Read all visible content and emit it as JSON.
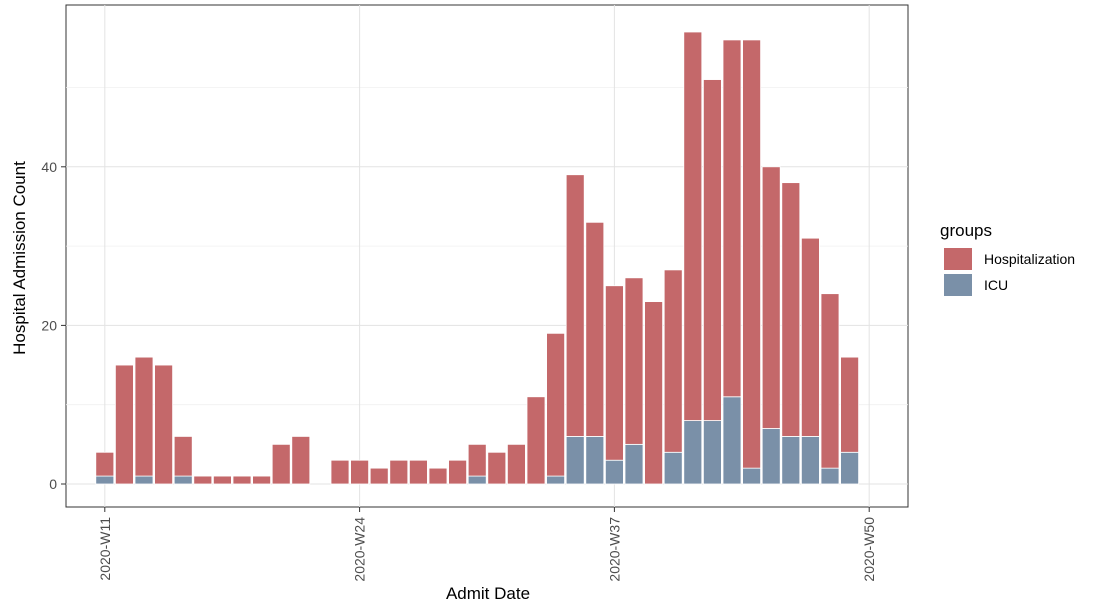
{
  "chart_data": {
    "type": "bar",
    "stacked": true,
    "xlabel": "Admit Date",
    "ylabel": "Hospital Admission Count",
    "x_ticks": [
      "2020-W11",
      "2020-W24",
      "2020-W37",
      "2020-W50"
    ],
    "y_ticks": [
      0,
      20,
      40
    ],
    "ylim": [
      -3,
      60
    ],
    "legend": {
      "title": "groups",
      "position": "right",
      "entries": [
        {
          "label": "Hospitalization",
          "color": "#c4686a"
        },
        {
          "label": "ICU",
          "color": "#7a90a8"
        }
      ]
    },
    "grid": true,
    "x": [
      "2020-W11",
      "2020-W12",
      "2020-W13",
      "2020-W14",
      "2020-W15",
      "2020-W16",
      "2020-W17",
      "2020-W18",
      "2020-W19",
      "2020-W20",
      "2020-W21",
      "2020-W22",
      "2020-W23",
      "2020-W24",
      "2020-W25",
      "2020-W26",
      "2020-W27",
      "2020-W28",
      "2020-W29",
      "2020-W30",
      "2020-W31",
      "2020-W32",
      "2020-W33",
      "2020-W34",
      "2020-W35",
      "2020-W36",
      "2020-W37",
      "2020-W38",
      "2020-W39",
      "2020-W40",
      "2020-W41",
      "2020-W42",
      "2020-W43",
      "2020-W44",
      "2020-W45",
      "2020-W46",
      "2020-W47",
      "2020-W48",
      "2020-W49",
      "2020-W50"
    ],
    "series": [
      {
        "name": "ICU",
        "color": "#7a90a8",
        "values": [
          1,
          0,
          1,
          0,
          1,
          0,
          0,
          0,
          0,
          0,
          0,
          0,
          0,
          0,
          0,
          0,
          0,
          0,
          0,
          1,
          0,
          0,
          0,
          1,
          6,
          6,
          3,
          5,
          0,
          4,
          8,
          8,
          11,
          2,
          7,
          6,
          6,
          2,
          4,
          0
        ]
      },
      {
        "name": "Hospitalization",
        "color": "#c4686a",
        "values": [
          3,
          15,
          15,
          15,
          5,
          1,
          1,
          1,
          1,
          5,
          6,
          0,
          3,
          3,
          2,
          3,
          3,
          2,
          3,
          4,
          4,
          5,
          11,
          18,
          33,
          27,
          22,
          21,
          23,
          23,
          49,
          43,
          45,
          54,
          33,
          32,
          25,
          22,
          12,
          0
        ]
      }
    ]
  }
}
